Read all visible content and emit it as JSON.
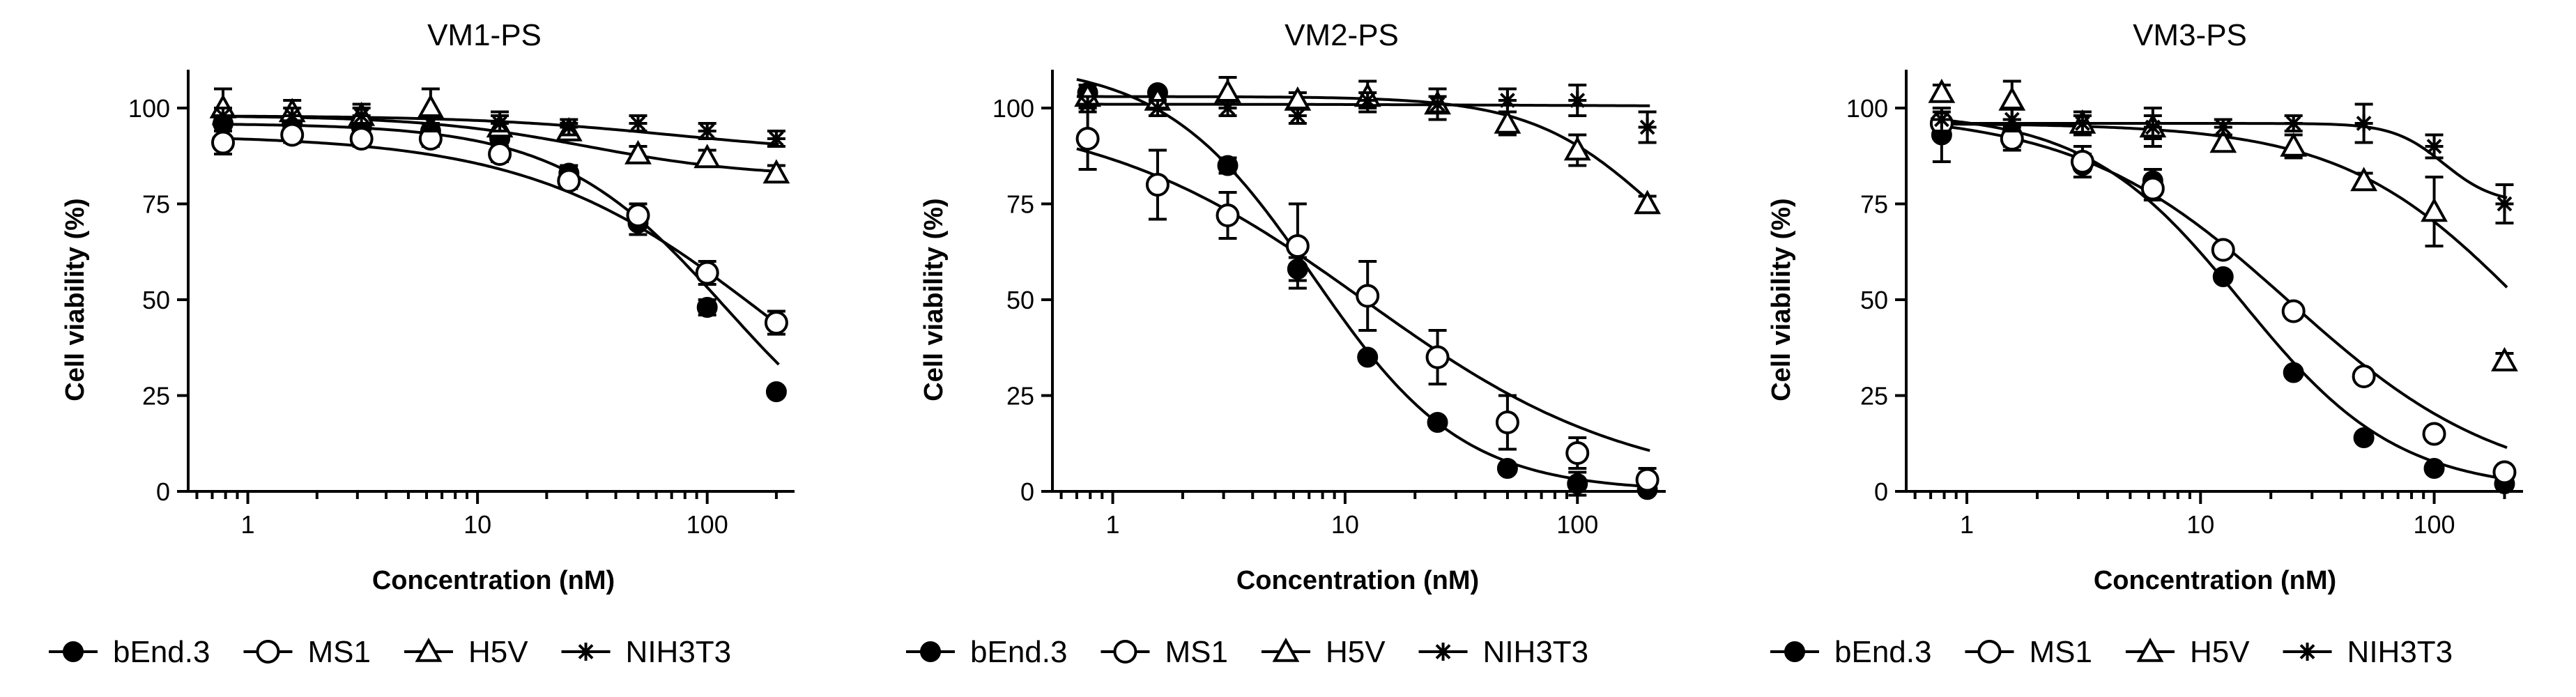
{
  "figure": {
    "legend_labels": [
      "bEnd.3",
      "MS1",
      "H5V",
      "NIH3T3"
    ]
  },
  "chart_data": [
    {
      "type": "line",
      "title": "VM1-PS",
      "xlabel": "Concentration (nM)",
      "ylabel": "Cell viability (%)",
      "xscale": "log",
      "xlim": [
        0.55,
        240
      ],
      "ylim": [
        0,
        110
      ],
      "x_ticks": [
        1,
        10,
        100
      ],
      "y_ticks": [
        0,
        25,
        50,
        75,
        100
      ],
      "x": [
        0.78,
        1.56,
        3.125,
        6.25,
        12.5,
        25,
        50,
        100,
        200
      ],
      "series": [
        {
          "name": "bEnd.3",
          "marker": "filled-circle",
          "values": [
            96,
            96,
            95,
            94,
            92,
            83,
            70,
            48,
            26
          ],
          "errors": [
            2,
            2,
            2,
            2,
            2,
            2,
            3,
            2,
            1
          ],
          "fit": {
            "top": 96,
            "bottom": 0,
            "ic50": 120,
            "hill": 1.2
          }
        },
        {
          "name": "MS1",
          "marker": "open-circle",
          "values": [
            91,
            93,
            92,
            92,
            88,
            81,
            72,
            57,
            44
          ],
          "errors": [
            3,
            2,
            2,
            2,
            2,
            2,
            3,
            3,
            3
          ],
          "fit": {
            "top": 93,
            "bottom": 0,
            "ic50": 175,
            "hill": 0.85
          }
        },
        {
          "name": "H5V",
          "marker": "open-triangle",
          "values": [
            100,
            99,
            98,
            100,
            95,
            94,
            88,
            87,
            83
          ],
          "errors": [
            5,
            3,
            3,
            5,
            4,
            2,
            2,
            2,
            2
          ],
          "fit": {
            "top": 98,
            "bottom": 82,
            "ic50": 30,
            "hill": 1.2
          }
        },
        {
          "name": "NIH3T3",
          "marker": "star",
          "values": [
            98,
            98,
            98,
            96,
            96,
            95,
            96,
            94,
            92
          ],
          "errors": [
            2,
            2,
            2,
            2,
            2,
            2,
            2,
            2,
            2
          ],
          "fit": {
            "top": 98,
            "bottom": 88,
            "ic50": 70,
            "hill": 1
          }
        }
      ]
    },
    {
      "type": "line",
      "title": "VM2-PS",
      "xlabel": "Concentration (nM)",
      "ylabel": "Cell viability (%)",
      "xscale": "log",
      "xlim": [
        0.55,
        240
      ],
      "ylim": [
        0,
        110
      ],
      "x_ticks": [
        1,
        10,
        100
      ],
      "y_ticks": [
        0,
        25,
        50,
        75,
        100
      ],
      "x": [
        0.78,
        1.56,
        3.125,
        6.25,
        12.5,
        25,
        50,
        100,
        200
      ],
      "series": [
        {
          "name": "bEnd.3",
          "marker": "filled-circle",
          "values": [
            104,
            104,
            85,
            58,
            35,
            18,
            6,
            2,
            0.5
          ],
          "errors": [
            2,
            1,
            2,
            3,
            1,
            1,
            1,
            3,
            1
          ],
          "fit": {
            "top": 112,
            "bottom": 0,
            "ic50": 7.3,
            "hill": 1.35
          }
        },
        {
          "name": "MS1",
          "marker": "open-circle",
          "values": [
            92,
            80,
            72,
            64,
            51,
            35,
            18,
            10,
            3
          ],
          "errors": [
            8,
            9,
            6,
            11,
            9,
            7,
            7,
            4,
            3
          ],
          "fit": {
            "top": 100,
            "bottom": 0,
            "ic50": 12,
            "hill": 0.75
          }
        },
        {
          "name": "H5V",
          "marker": "open-triangle",
          "values": [
            103,
            102,
            104,
            102,
            103,
            101,
            96,
            89,
            75
          ],
          "errors": [
            3,
            2,
            4,
            2,
            4,
            4,
            3,
            4,
            2
          ],
          "fit": {
            "top": 103,
            "bottom": 45,
            "ic50": 220,
            "hill": 1.6
          }
        },
        {
          "name": "NIH3T3",
          "marker": "star",
          "values": [
            101,
            100,
            100,
            98,
            102,
            101,
            102,
            102,
            95
          ],
          "errors": [
            2,
            2,
            2,
            2,
            2,
            2,
            3,
            4,
            4
          ],
          "fit": {
            "top": 101,
            "bottom": 100.5,
            "ic50": 50,
            "hill": 1
          }
        }
      ]
    },
    {
      "type": "line",
      "title": "VM3-PS",
      "xlabel": "Concentration (nM)",
      "ylabel": "Cell viability (%)",
      "xscale": "log",
      "xlim": [
        0.55,
        240
      ],
      "ylim": [
        0,
        110
      ],
      "x_ticks": [
        1,
        10,
        100
      ],
      "y_ticks": [
        0,
        25,
        50,
        75,
        100
      ],
      "x": [
        0.78,
        1.56,
        3.125,
        6.25,
        12.5,
        25,
        50,
        100,
        200
      ],
      "series": [
        {
          "name": "bEnd.3",
          "marker": "filled-circle",
          "values": [
            93,
            93,
            85,
            81,
            56,
            31,
            14,
            6,
            2
          ],
          "errors": [
            7,
            3,
            3,
            3,
            1,
            1,
            1,
            1,
            1
          ],
          "fit": {
            "top": 99,
            "bottom": 0,
            "ic50": 15,
            "hill": 1.3
          }
        },
        {
          "name": "MS1",
          "marker": "open-circle",
          "values": [
            96,
            92,
            86,
            79,
            63,
            47,
            30,
            15,
            5
          ],
          "errors": [
            3,
            3,
            4,
            3,
            1,
            1,
            1,
            1,
            1
          ],
          "fit": {
            "top": 99,
            "bottom": 0,
            "ic50": 24,
            "hill": 0.95
          }
        },
        {
          "name": "H5V",
          "marker": "open-triangle",
          "values": [
            104,
            102,
            96,
            95,
            91,
            90,
            81,
            73,
            34
          ],
          "errors": [
            2,
            5,
            2,
            5,
            2,
            3,
            2,
            9,
            2
          ],
          "fit": {
            "top": 96,
            "bottom": 0,
            "ic50": 250,
            "hill": 1.1
          }
        },
        {
          "name": "NIH3T3",
          "marker": "star",
          "values": [
            97,
            97,
            96,
            95,
            95,
            96,
            96,
            90,
            75
          ],
          "errors": [
            3,
            3,
            3,
            3,
            2,
            2,
            5,
            3,
            5
          ],
          "fit": {
            "top": 96,
            "bottom": 75,
            "ic50": 110,
            "hill": 4
          }
        }
      ]
    }
  ]
}
